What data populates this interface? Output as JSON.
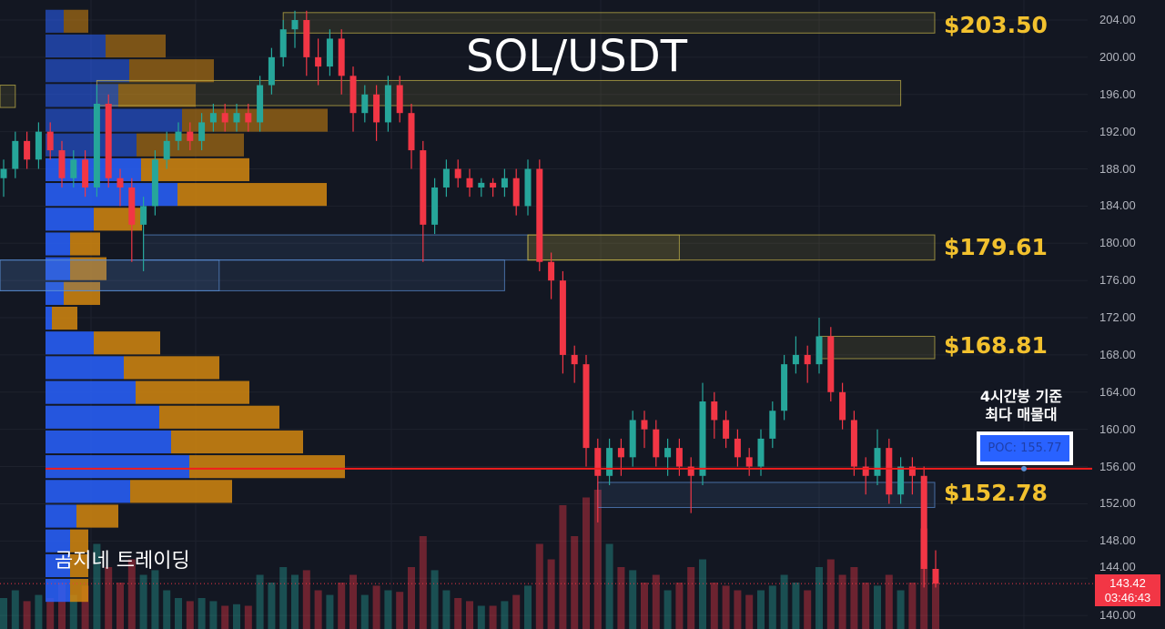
{
  "title": "SOL/USDT",
  "brand": "곰지네 트레이딩",
  "note_line1": "4시간봉 기준",
  "note_line2": "최다 매물대",
  "poc_label": "POC: 155.77",
  "current_price": "143.42",
  "countdown": "03:46:43",
  "levels": [
    "$203.50",
    "$179.61",
    "$168.81",
    "$152.78"
  ],
  "chart_data": {
    "type": "candlestick",
    "title": "SOL/USDT",
    "ylim": [
      139,
      205.5
    ],
    "y_ticks": [
      "204.00",
      "200.00",
      "196.00",
      "192.00",
      "188.00",
      "184.00",
      "180.00",
      "176.00",
      "172.00",
      "168.00",
      "164.00",
      "160.00",
      "156.00",
      "152.00",
      "148.00",
      "144.00",
      "140.00"
    ],
    "poc_price": 155.77,
    "last_price": 143.42,
    "level_prices": [
      203.5,
      179.61,
      168.81,
      152.78
    ],
    "colors": {
      "up": "#26a69a",
      "down": "#f23645",
      "buy_volume": "#2962ff",
      "sell_volume": "#d4870f",
      "level_text": "#f2c12e",
      "poc_line": "#f21d1d"
    },
    "candles_ohlcv": [
      [
        187,
        189,
        185,
        188,
        20
      ],
      [
        188,
        192,
        187,
        191,
        25
      ],
      [
        191,
        192,
        188,
        189,
        18
      ],
      [
        189,
        193,
        188,
        192,
        22
      ],
      [
        192,
        193,
        189,
        190,
        20
      ],
      [
        190,
        191,
        186,
        187,
        30
      ],
      [
        187,
        190,
        186,
        189,
        22
      ],
      [
        189,
        190,
        185,
        186,
        28
      ],
      [
        186,
        197,
        185,
        195,
        55
      ],
      [
        195,
        196,
        186,
        187,
        40
      ],
      [
        187,
        188,
        184,
        186,
        30
      ],
      [
        186,
        187,
        178,
        182,
        45
      ],
      [
        182,
        185,
        177,
        184,
        35
      ],
      [
        184,
        190,
        183,
        189,
        38
      ],
      [
        189,
        192,
        188,
        191,
        25
      ],
      [
        191,
        193,
        190,
        192,
        20
      ],
      [
        192,
        193,
        190,
        191,
        18
      ],
      [
        191,
        194,
        190,
        193,
        20
      ],
      [
        193,
        195,
        192,
        194,
        18
      ],
      [
        194,
        195,
        192,
        193,
        15
      ],
      [
        193,
        195,
        192,
        194,
        16
      ],
      [
        194,
        195,
        192,
        193,
        15
      ],
      [
        193,
        198,
        192,
        197,
        35
      ],
      [
        197,
        201,
        196,
        200,
        30
      ],
      [
        200,
        204,
        199,
        203,
        40
      ],
      [
        203,
        205,
        201,
        204,
        35
      ],
      [
        204,
        205,
        198,
        200,
        38
      ],
      [
        200,
        202,
        197,
        199,
        25
      ],
      [
        199,
        203,
        198,
        202,
        22
      ],
      [
        202,
        203,
        196,
        198,
        30
      ],
      [
        198,
        199,
        192,
        194,
        35
      ],
      [
        194,
        197,
        193,
        196,
        22
      ],
      [
        196,
        197,
        191,
        193,
        28
      ],
      [
        193,
        198,
        192,
        197,
        25
      ],
      [
        197,
        198,
        193,
        194,
        24
      ],
      [
        194,
        195,
        188,
        190,
        40
      ],
      [
        190,
        191,
        178,
        182,
        60
      ],
      [
        182,
        187,
        181,
        186,
        38
      ],
      [
        186,
        189,
        185,
        188,
        25
      ],
      [
        188,
        189,
        186,
        187,
        20
      ],
      [
        187,
        188,
        185,
        186,
        18
      ],
      [
        186,
        187,
        185,
        186.5,
        15
      ],
      [
        186.5,
        187,
        185,
        186,
        15
      ],
      [
        186,
        188,
        185,
        187,
        18
      ],
      [
        187,
        188,
        183,
        184,
        22
      ],
      [
        184,
        189,
        183,
        188,
        28
      ],
      [
        188,
        189,
        177,
        178,
        55
      ],
      [
        178,
        179,
        174,
        176,
        45
      ],
      [
        176,
        177,
        166,
        168,
        80
      ],
      [
        168,
        169,
        165,
        167,
        60
      ],
      [
        167,
        168,
        156,
        158,
        85
      ],
      [
        158,
        159,
        150,
        155,
        90
      ],
      [
        155,
        159,
        154,
        158,
        55
      ],
      [
        158,
        159,
        155,
        157,
        40
      ],
      [
        157,
        162,
        156,
        161,
        38
      ],
      [
        161,
        162,
        158,
        160,
        30
      ],
      [
        160,
        161,
        156,
        157,
        35
      ],
      [
        157,
        159,
        155,
        158,
        25
      ],
      [
        158,
        159,
        155,
        156,
        30
      ],
      [
        156,
        157,
        151,
        155,
        40
      ],
      [
        155,
        165,
        154,
        163,
        45
      ],
      [
        163,
        164,
        159,
        161,
        30
      ],
      [
        161,
        162,
        158,
        159,
        28
      ],
      [
        159,
        160,
        156,
        157,
        25
      ],
      [
        157,
        158,
        155,
        156,
        22
      ],
      [
        156,
        160,
        155,
        159,
        25
      ],
      [
        159,
        163,
        158,
        162,
        28
      ],
      [
        162,
        168,
        161,
        167,
        35
      ],
      [
        167,
        170,
        166,
        168,
        30
      ],
      [
        168,
        169,
        165,
        167,
        25
      ],
      [
        167,
        172,
        166,
        170,
        40
      ],
      [
        170,
        171,
        163,
        164,
        45
      ],
      [
        164,
        165,
        160,
        161,
        35
      ],
      [
        161,
        162,
        155,
        156,
        40
      ],
      [
        156,
        157,
        153,
        155,
        30
      ],
      [
        155,
        160,
        154,
        158,
        28
      ],
      [
        158,
        159,
        152,
        153,
        35
      ],
      [
        153,
        157,
        152,
        156,
        25
      ],
      [
        156,
        157,
        153,
        155,
        30
      ],
      [
        155,
        156,
        143,
        145,
        65
      ],
      [
        145,
        147,
        143,
        143.42,
        30
      ]
    ],
    "volume_profile": {
      "top_price": 205.2,
      "bin_size": 2.66,
      "rows_buy_sell": [
        [
          20,
          27
        ],
        [
          66,
          66
        ],
        [
          92,
          93
        ],
        [
          80,
          85
        ],
        [
          150,
          160
        ],
        [
          100,
          118
        ],
        [
          105,
          119
        ],
        [
          145,
          164
        ],
        [
          53,
          53
        ],
        [
          27,
          33
        ],
        [
          27,
          40
        ],
        [
          20,
          40
        ],
        [
          7,
          28
        ],
        [
          53,
          73
        ],
        [
          86,
          105
        ],
        [
          99,
          125
        ],
        [
          125,
          132
        ],
        [
          138,
          145
        ],
        [
          158,
          171
        ],
        [
          93,
          112
        ],
        [
          34,
          46
        ],
        [
          27,
          20
        ],
        [
          27,
          20
        ],
        [
          27,
          20
        ]
      ]
    },
    "zones": [
      {
        "low": 202.6,
        "high": 204.8,
        "from": 24,
        "to": 80,
        "color": "#c9b84a"
      },
      {
        "low": 194.8,
        "high": 197.5,
        "from": 8,
        "to": 77,
        "color": "#c9b84a"
      },
      {
        "low": 194.6,
        "high": 197.0,
        "from": -1,
        "to": 1,
        "color": "#c9b84a"
      },
      {
        "low": 178.2,
        "high": 180.9,
        "from": 12,
        "to": 45,
        "color": "#5b8fd6"
      },
      {
        "low": 178.2,
        "high": 180.9,
        "from": 45,
        "to": 58,
        "color": "#c9b84a"
      },
      {
        "low": 178.2,
        "high": 180.9,
        "from": 45,
        "to": 80,
        "color": "#c9b84a"
      },
      {
        "low": 174.9,
        "high": 178.2,
        "from": -1,
        "to": 43,
        "color": "#5b8fd6"
      },
      {
        "low": 174.9,
        "high": 178.2,
        "from": -1,
        "to": 18.5,
        "color": "#5b8fd6"
      },
      {
        "low": 167.6,
        "high": 170.0,
        "from": 70,
        "to": 80,
        "color": "#c9b84a"
      },
      {
        "low": 151.6,
        "high": 154.3,
        "from": 51,
        "to": 80,
        "color": "#5b8fd6"
      }
    ]
  }
}
